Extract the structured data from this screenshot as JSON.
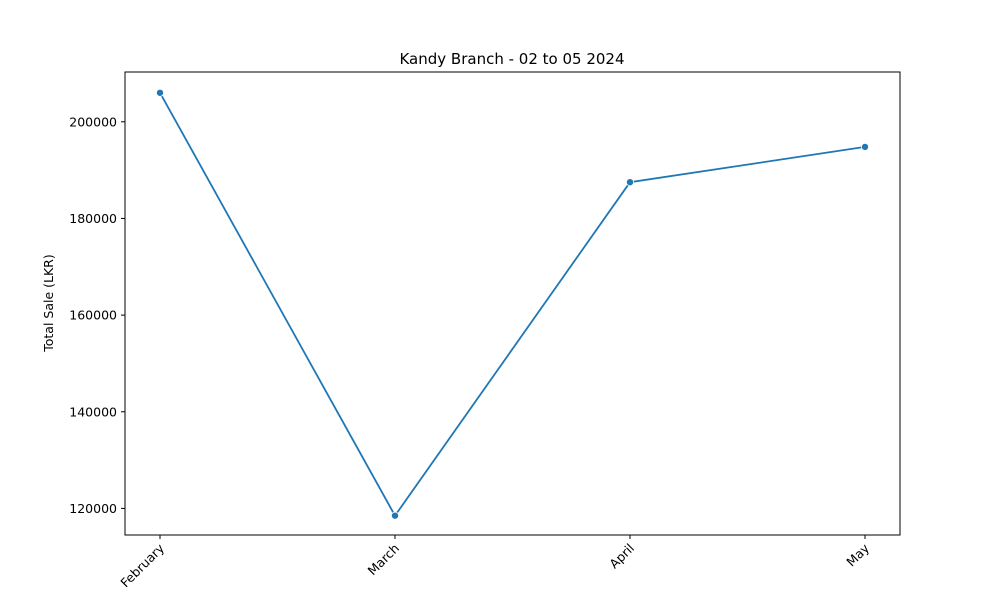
{
  "chart_data": {
    "type": "line",
    "title": "Kandy Branch - 02 to 05 2024",
    "xlabel": "",
    "ylabel": "Total Sale (LKR)",
    "categories": [
      "February",
      "March",
      "April",
      "May"
    ],
    "series": [
      {
        "values": [
          206000,
          118500,
          187500,
          194800
        ]
      }
    ],
    "ylim": [
      114500,
      210300
    ],
    "yticks": [
      120000,
      140000,
      160000,
      180000,
      200000
    ],
    "ytick_labels": [
      "120000",
      "140000",
      "160000",
      "180000",
      "200000"
    ],
    "x_tick_rotation_deg": 45,
    "grid": false,
    "legend": "none",
    "colors": {
      "line": "#1f77b4",
      "axes": "#000000",
      "background": "#ffffff"
    }
  }
}
